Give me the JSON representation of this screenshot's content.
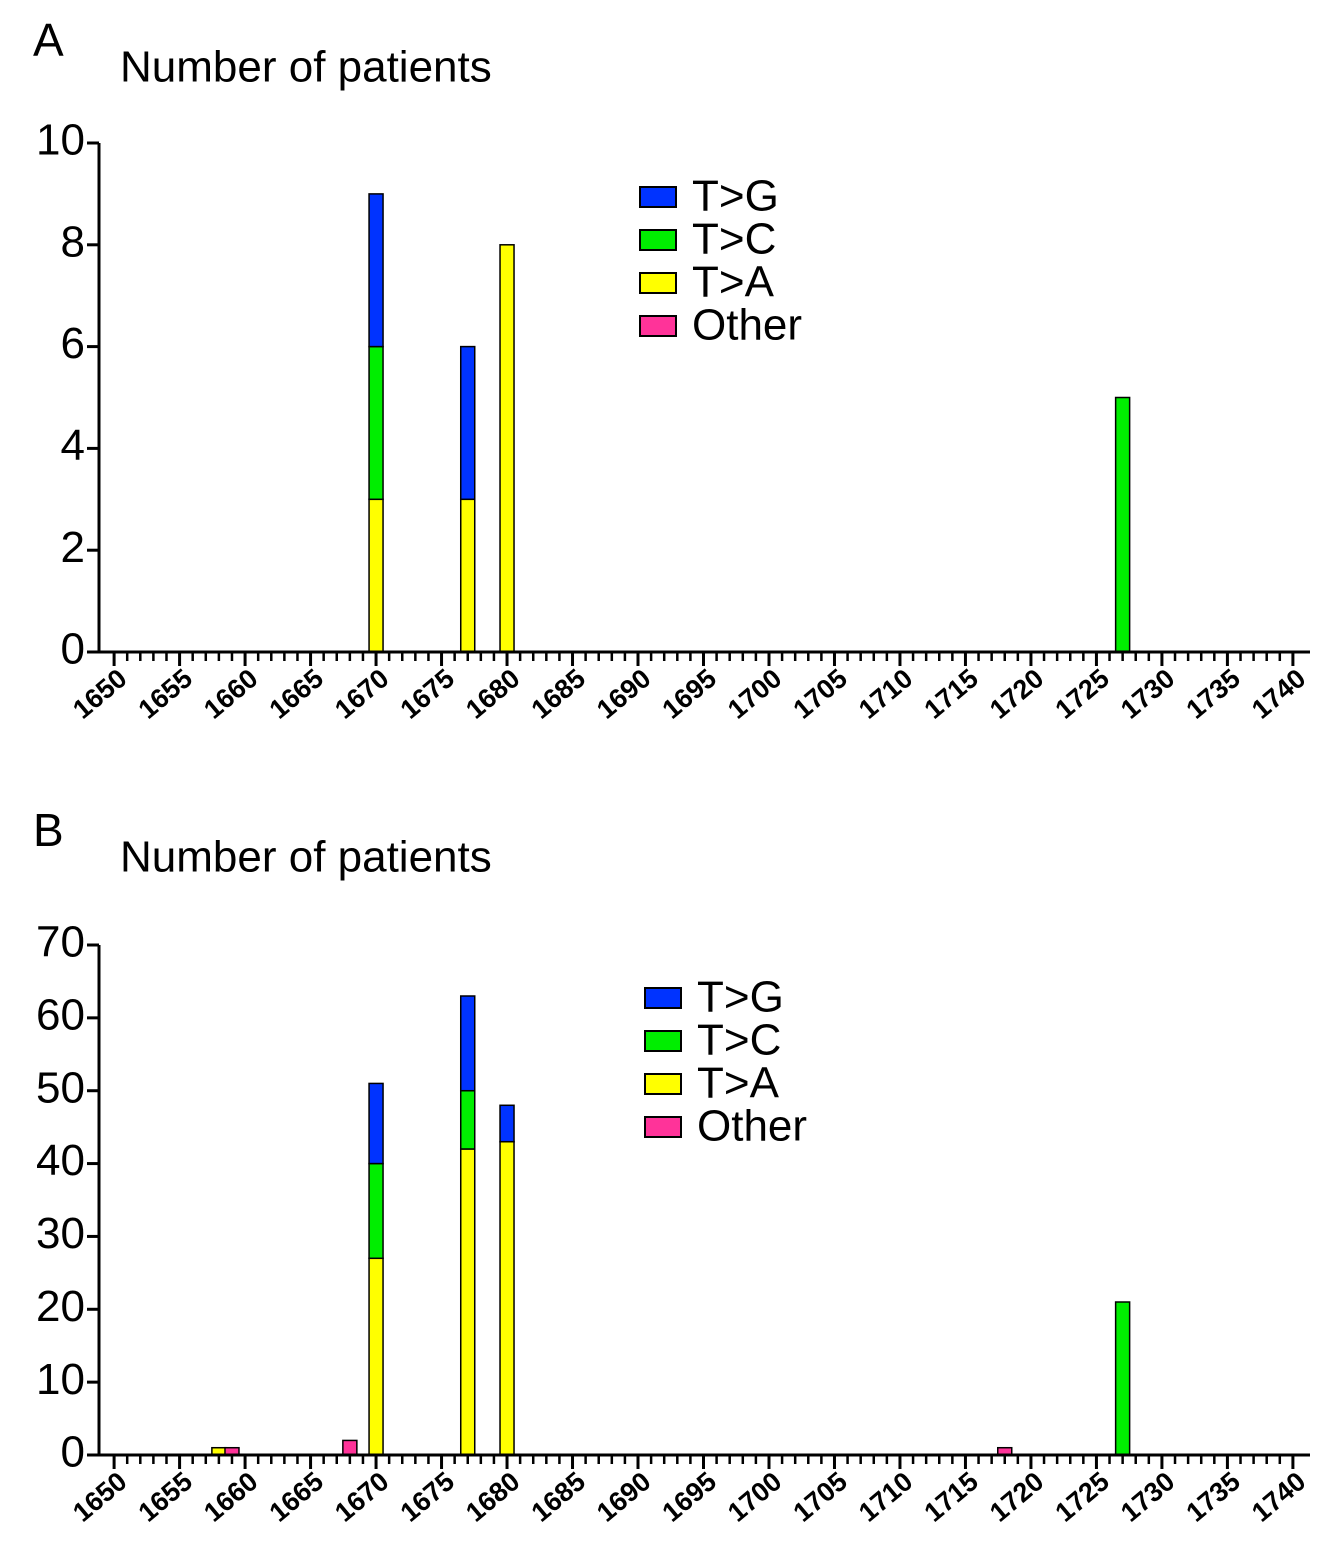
{
  "chart_data": [
    {
      "type": "bar",
      "panel_label": "A",
      "title": "Number of patients",
      "x": [
        1670,
        1677,
        1680,
        1727
      ],
      "series": [
        {
          "name": "T>G",
          "color": "#0033ff",
          "values": [
            3,
            3,
            0,
            0
          ]
        },
        {
          "name": "T>C",
          "color": "#00ee00",
          "values": [
            3,
            0,
            0,
            5
          ]
        },
        {
          "name": "T>A",
          "color": "#ffff00",
          "values": [
            3,
            3,
            8,
            0
          ]
        },
        {
          "name": "Other",
          "color": "#ff3399",
          "values": [
            0,
            0,
            0,
            0
          ]
        }
      ],
      "xlim": [
        1649,
        1741
      ],
      "xticks": [
        1650,
        1655,
        1660,
        1665,
        1670,
        1675,
        1680,
        1685,
        1690,
        1695,
        1700,
        1705,
        1710,
        1715,
        1720,
        1725,
        1730,
        1735,
        1740
      ],
      "ylim": [
        0,
        10
      ],
      "yticks": [
        0,
        2,
        4,
        6,
        8,
        10
      ],
      "stacked": true
    },
    {
      "type": "bar",
      "panel_label": "B",
      "title": "Number of patients",
      "x": [
        1658,
        1659,
        1668,
        1670,
        1677,
        1680,
        1718,
        1727
      ],
      "series": [
        {
          "name": "T>G",
          "color": "#0033ff",
          "values": [
            0,
            0,
            0,
            11,
            13,
            5,
            0,
            0
          ]
        },
        {
          "name": "T>C",
          "color": "#00ee00",
          "values": [
            0,
            0,
            0,
            13,
            8,
            0,
            0,
            21
          ]
        },
        {
          "name": "T>A",
          "color": "#ffff00",
          "values": [
            1,
            0,
            0,
            27,
            42,
            43,
            0,
            0
          ]
        },
        {
          "name": "Other",
          "color": "#ff3399",
          "values": [
            0,
            1,
            2,
            0,
            0,
            0,
            1,
            0
          ]
        }
      ],
      "xlim": [
        1649,
        1741
      ],
      "xticks": [
        1650,
        1655,
        1660,
        1665,
        1670,
        1675,
        1680,
        1685,
        1690,
        1695,
        1700,
        1705,
        1710,
        1715,
        1720,
        1725,
        1730,
        1735,
        1740
      ],
      "ylim": [
        0,
        70
      ],
      "yticks": [
        0,
        10,
        20,
        30,
        40,
        50,
        60,
        70
      ],
      "stacked": true
    }
  ]
}
